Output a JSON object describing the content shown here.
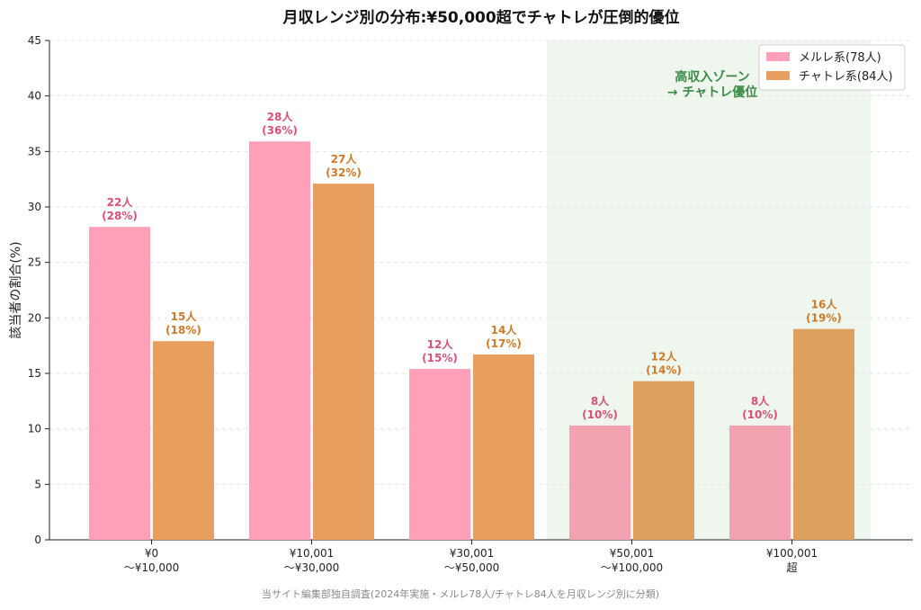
{
  "chart_data": {
    "type": "bar",
    "title": "月収レンジ別の分布:¥50,000超でチャトレが圧倒的優位",
    "ylabel": "該当者の割合(%)",
    "xlabel": "",
    "ylim": [
      0,
      45
    ],
    "yticks": [
      0,
      5,
      10,
      15,
      20,
      25,
      30,
      35,
      40,
      45
    ],
    "grid": true,
    "legend_position": "top-right",
    "categories": [
      [
        "¥0",
        "〜¥10,000"
      ],
      [
        "¥10,001",
        "〜¥30,000"
      ],
      [
        "¥30,001",
        "〜¥50,000"
      ],
      [
        "¥50,001",
        "〜¥100,000"
      ],
      [
        "¥100,001",
        "超"
      ]
    ],
    "series": [
      {
        "name": "メルレ系(78人)",
        "color": "#ff9fb8",
        "zone_color": "#f2a2b1",
        "label_color": "#d9507a",
        "values": [
          28.2,
          35.9,
          15.4,
          10.3,
          10.3
        ],
        "labels": [
          [
            "22人",
            "(28%)"
          ],
          [
            "28人",
            "(36%)"
          ],
          [
            "12人",
            "(15%)"
          ],
          [
            "8人",
            "(10%)"
          ],
          [
            "8人",
            "(10%)"
          ]
        ]
      },
      {
        "name": "チャトレ系(84人)",
        "color": "#e89e5e",
        "zone_color": "#dda05f",
        "label_color": "#cf7a27",
        "values": [
          17.9,
          32.1,
          16.7,
          14.3,
          19.0
        ],
        "labels": [
          [
            "15人",
            "(18%)"
          ],
          [
            "27人",
            "(32%)"
          ],
          [
            "14人",
            "(17%)"
          ],
          [
            "12人",
            "(14%)"
          ],
          [
            "16人",
            "(19%)"
          ]
        ]
      }
    ],
    "highlight_zone": {
      "categories": [
        3,
        4
      ],
      "color": "#eef6ee",
      "label": [
        "高収入ゾーン",
        "→ チャトレ優位"
      ]
    },
    "footnote": "当サイト編集部独自調査(2024年実施・メルレ78人/チャトレ84人を月収レンジ別に分類)"
  }
}
